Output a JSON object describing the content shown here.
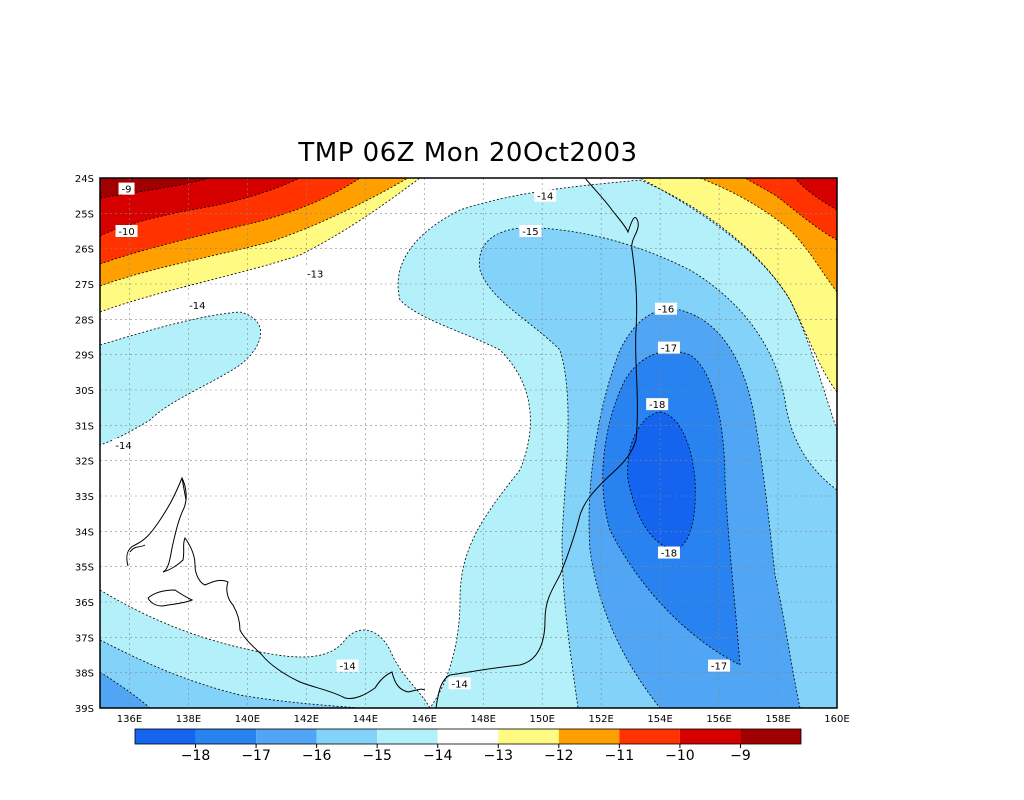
{
  "title": "TMP 06Z Mon 20Oct2003",
  "chart_data": {
    "type": "heatmap",
    "title": "TMP 06Z Mon 20Oct2003",
    "variable": "TMP",
    "xlabel": "",
    "ylabel": "",
    "xlim": [
      135,
      160
    ],
    "ylim": [
      -39,
      -24
    ],
    "grid": true,
    "x_ticks": [
      {
        "value": 136,
        "label": "136E"
      },
      {
        "value": 138,
        "label": "138E"
      },
      {
        "value": 140,
        "label": "140E"
      },
      {
        "value": 142,
        "label": "142E"
      },
      {
        "value": 144,
        "label": "144E"
      },
      {
        "value": 146,
        "label": "146E"
      },
      {
        "value": 148,
        "label": "148E"
      },
      {
        "value": 150,
        "label": "150E"
      },
      {
        "value": 152,
        "label": "152E"
      },
      {
        "value": 154,
        "label": "154E"
      },
      {
        "value": 156,
        "label": "156E"
      },
      {
        "value": 158,
        "label": "158E"
      },
      {
        "value": 160,
        "label": "160E"
      }
    ],
    "y_ticks": [
      {
        "value": -24,
        "label": "24S"
      },
      {
        "value": -25,
        "label": "25S"
      },
      {
        "value": -26,
        "label": "26S"
      },
      {
        "value": -27,
        "label": "27S"
      },
      {
        "value": -28,
        "label": "28S"
      },
      {
        "value": -29,
        "label": "29S"
      },
      {
        "value": -30,
        "label": "30S"
      },
      {
        "value": -31,
        "label": "31S"
      },
      {
        "value": -32,
        "label": "32S"
      },
      {
        "value": -33,
        "label": "33S"
      },
      {
        "value": -34,
        "label": "34S"
      },
      {
        "value": -35,
        "label": "35S"
      },
      {
        "value": -36,
        "label": "36S"
      },
      {
        "value": -37,
        "label": "37S"
      },
      {
        "value": -38,
        "label": "38S"
      },
      {
        "value": -39,
        "label": "39S"
      }
    ],
    "color_levels": [
      {
        "range": "< -18",
        "color": "#1464f0"
      },
      {
        "range": "-18 to -17",
        "color": "#2882f0"
      },
      {
        "range": "-17 to -16",
        "color": "#50a5f5"
      },
      {
        "range": "-16 to -15",
        "color": "#82d2fa"
      },
      {
        "range": "-15 to -14",
        "color": "#b4f0fa"
      },
      {
        "range": "-14 to -13",
        "color": "#ffffff"
      },
      {
        "range": "-13 to -12",
        "color": "#fffa82"
      },
      {
        "range": "-12 to -11",
        "color": "#ffa000"
      },
      {
        "range": "-11 to -10",
        "color": "#ff3200"
      },
      {
        "range": "-10 to -9",
        "color": "#d70000"
      },
      {
        "range": "> -9",
        "color": "#a00000"
      }
    ],
    "colorbar_labels": [
      "−18",
      "−17",
      "−16",
      "−15",
      "−14",
      "−13",
      "−12",
      "−11",
      "−10",
      "−9"
    ],
    "contour_labels": [
      {
        "text": "-9",
        "lon": 135.9,
        "lat": -24.3
      },
      {
        "text": "-10",
        "lon": 135.9,
        "lat": -25.5
      },
      {
        "text": "-13",
        "lon": 142.3,
        "lat": -26.7
      },
      {
        "text": "-14",
        "lon": 138.3,
        "lat": -27.6
      },
      {
        "text": "-14",
        "lon": 150.1,
        "lat": -24.5
      },
      {
        "text": "-15",
        "lon": 149.6,
        "lat": -25.5
      },
      {
        "text": "-14",
        "lon": 135.8,
        "lat": -31.55
      },
      {
        "text": "-16",
        "lon": 154.2,
        "lat": -27.7
      },
      {
        "text": "-17",
        "lon": 154.3,
        "lat": -28.8
      },
      {
        "text": "-18",
        "lon": 153.9,
        "lat": -30.4
      },
      {
        "text": "-18",
        "lon": 154.3,
        "lat": -34.6
      },
      {
        "text": "-17",
        "lon": 156.0,
        "lat": -37.8
      },
      {
        "text": "-14",
        "lon": 143.4,
        "lat": -37.8
      },
      {
        "text": "-14",
        "lon": 147.2,
        "lat": -38.3
      }
    ],
    "colors": {
      "grid": "#888888",
      "coastline": "#000000",
      "contour_line": "#000000"
    }
  }
}
